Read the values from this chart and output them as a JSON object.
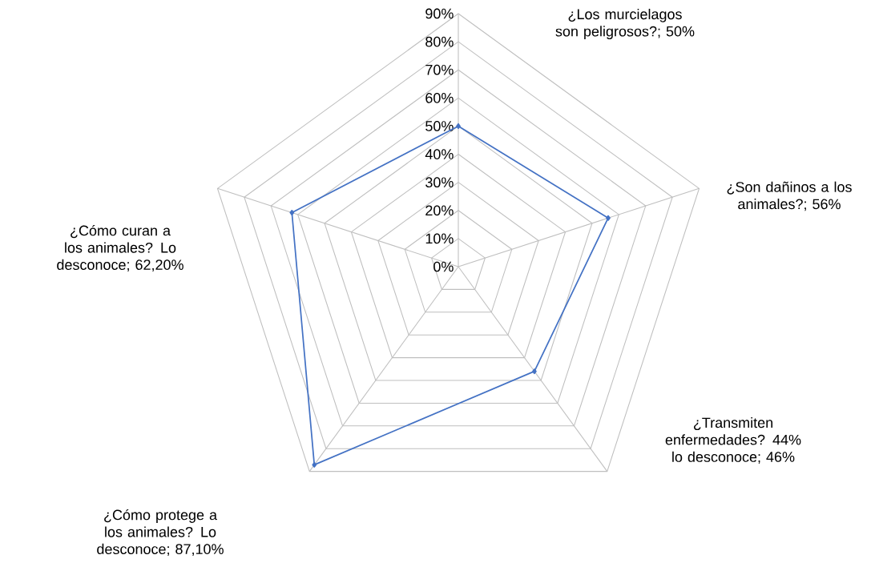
{
  "chart_data": {
    "type": "radar",
    "categories": [
      "¿Los murcielagos son peligrosos?; 50%",
      "¿Son dañinos a los animales?; 56%",
      "¿Transmiten enfermedades? 44% lo desconoce; 46%",
      "¿Cómo protege a los animales? Lo desconoce; 87,10%",
      "¿Cómo curan a los animales? Lo desconoce; 62,20%"
    ],
    "series": [
      {
        "color": "#4472c4",
        "values": [
          50,
          56,
          46,
          87.1,
          62.2
        ]
      }
    ],
    "ylim": [
      0,
      90
    ],
    "yticks": [
      {
        "value": 0,
        "label": "0%"
      },
      {
        "value": 10,
        "label": "10%"
      },
      {
        "value": 20,
        "label": "20%"
      },
      {
        "value": 30,
        "label": "30%"
      },
      {
        "value": 40,
        "label": "40%"
      },
      {
        "value": 50,
        "label": "50%"
      },
      {
        "value": 60,
        "label": "60%"
      },
      {
        "value": 70,
        "label": "70%"
      },
      {
        "value": 80,
        "label": "80%"
      },
      {
        "value": 90,
        "label": "90%"
      }
    ],
    "grid": true,
    "marker": "diamond"
  }
}
